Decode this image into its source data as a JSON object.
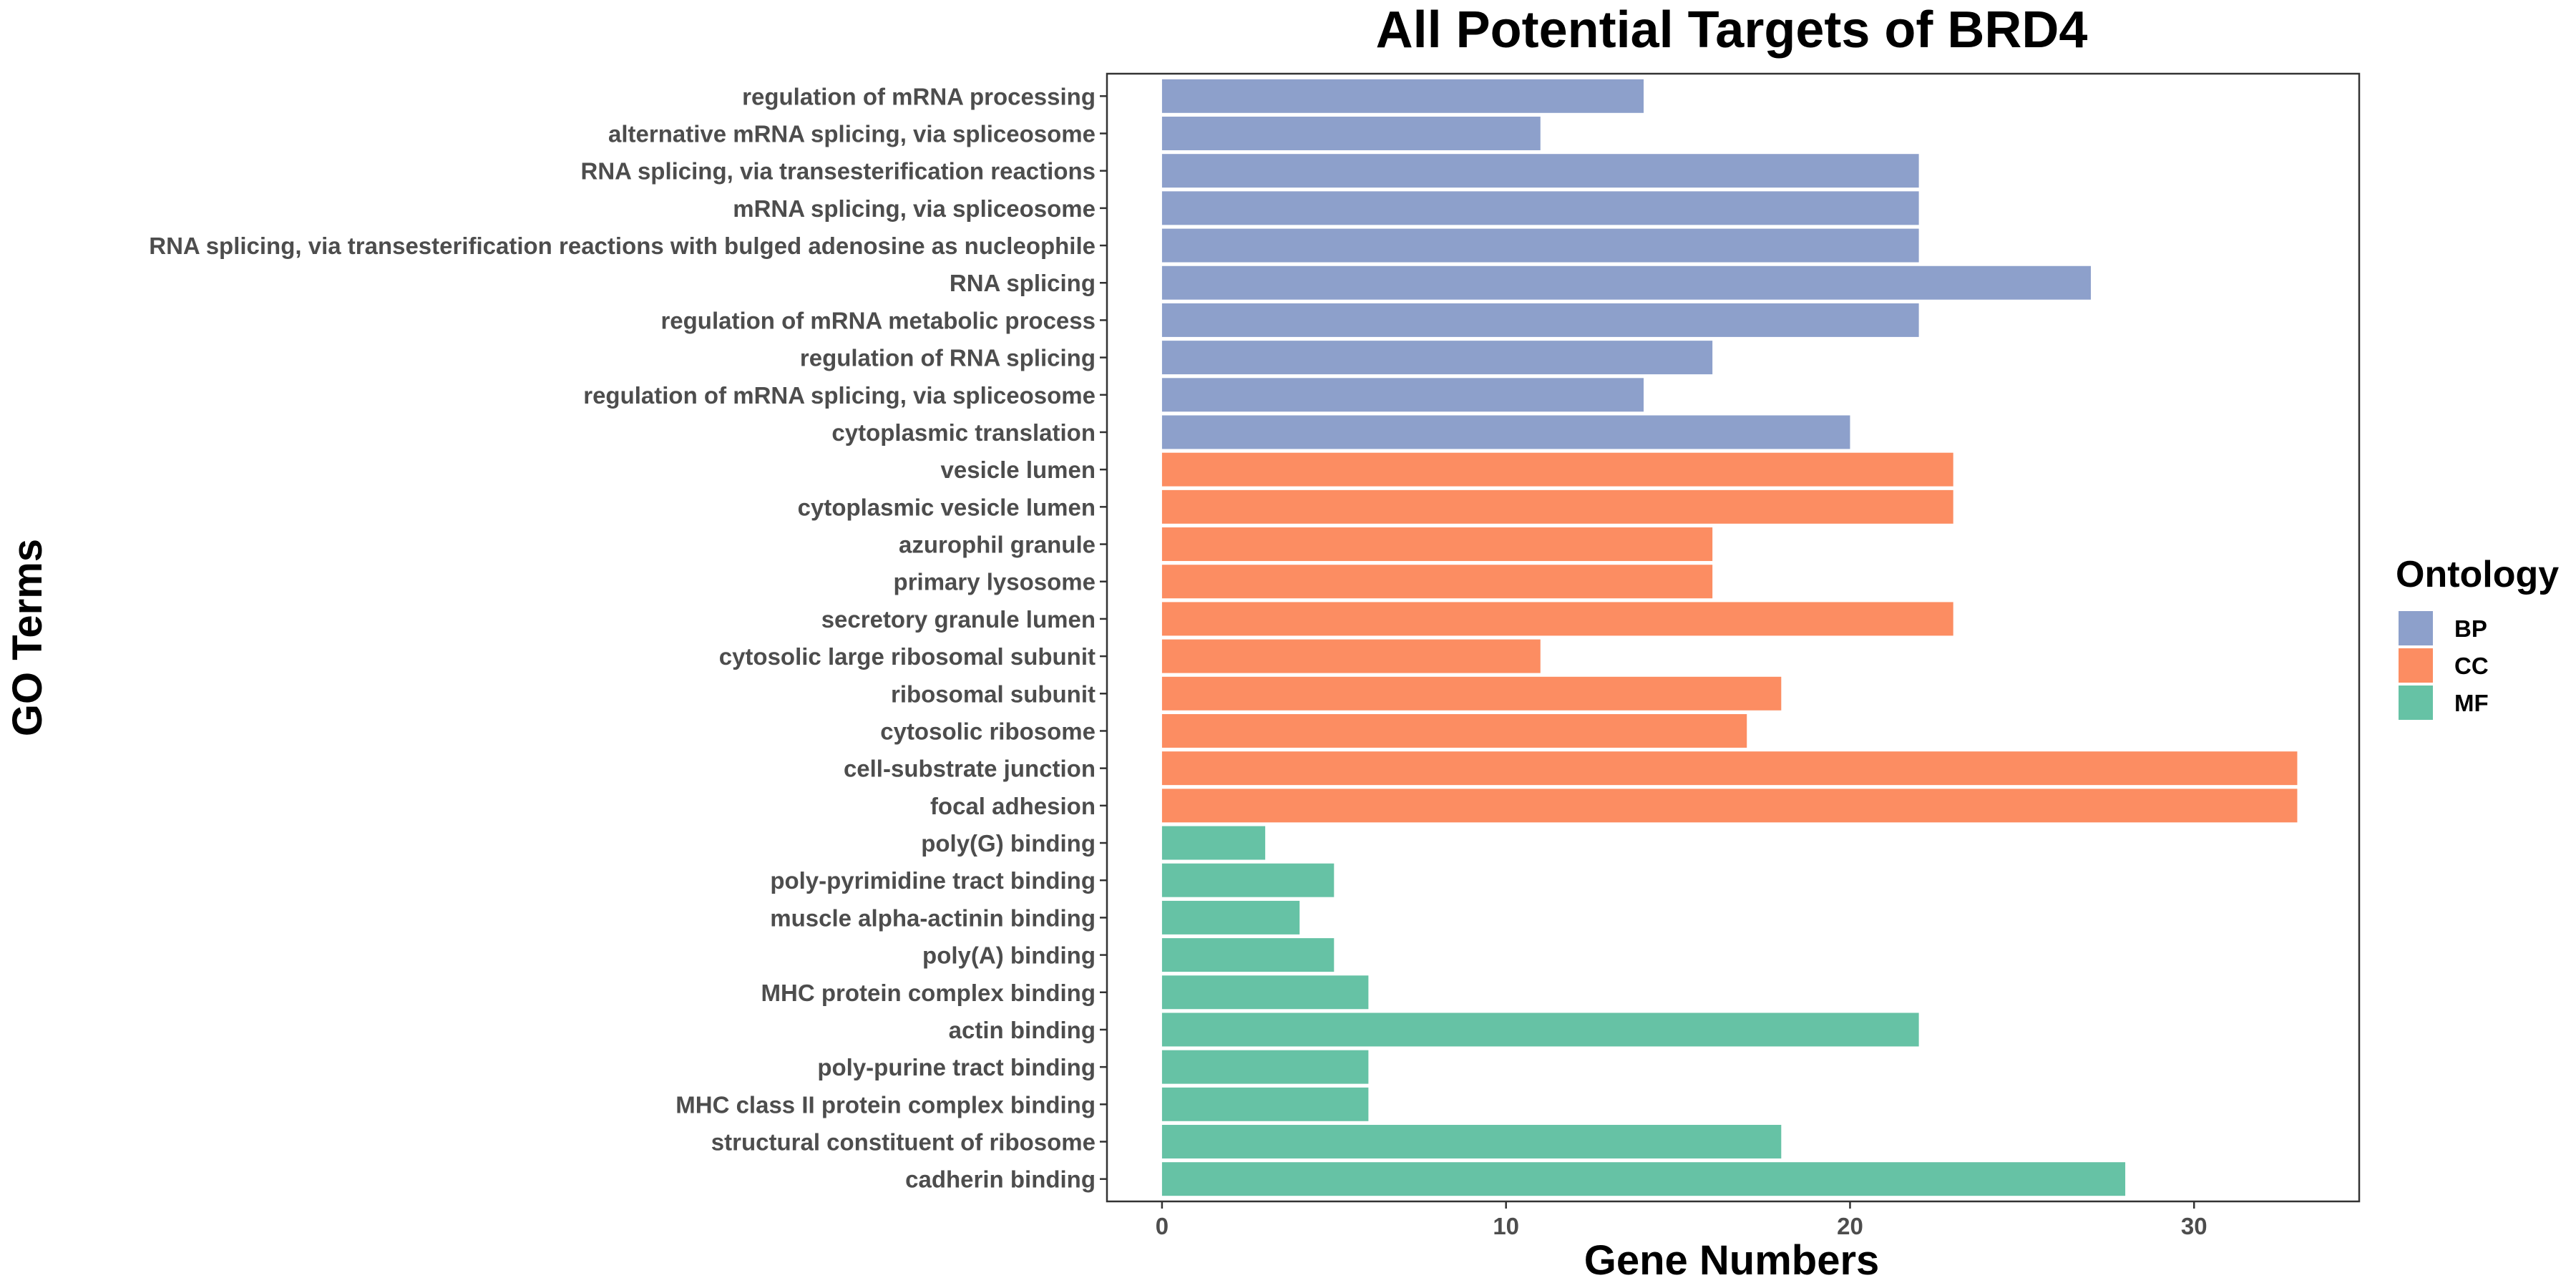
{
  "chart_data": {
    "type": "bar",
    "orientation": "horizontal",
    "title": "All Potential Targets of BRD4",
    "xlabel": "Gene Numbers",
    "ylabel": "GO Terms",
    "xlim": [
      -1.6,
      34.8
    ],
    "xticks": [
      0,
      10,
      20,
      30
    ],
    "grid": false,
    "legend": {
      "title": "Ontology",
      "placement": "right",
      "entries": [
        {
          "name": "BP",
          "color": "#8DA0CB"
        },
        {
          "name": "CC",
          "color": "#FC8D62"
        },
        {
          "name": "MF",
          "color": "#66C2A5"
        }
      ]
    },
    "bars": [
      {
        "term": "regulation of mRNA processing",
        "value": 14,
        "ontology": "BP"
      },
      {
        "term": "alternative mRNA splicing, via spliceosome",
        "value": 11,
        "ontology": "BP"
      },
      {
        "term": "RNA splicing, via transesterification reactions",
        "value": 22,
        "ontology": "BP"
      },
      {
        "term": "mRNA splicing, via spliceosome",
        "value": 22,
        "ontology": "BP"
      },
      {
        "term": "RNA splicing, via transesterification reactions with bulged adenosine as nucleophile",
        "value": 22,
        "ontology": "BP"
      },
      {
        "term": "RNA splicing",
        "value": 27,
        "ontology": "BP"
      },
      {
        "term": "regulation of mRNA metabolic process",
        "value": 22,
        "ontology": "BP"
      },
      {
        "term": "regulation of RNA splicing",
        "value": 16,
        "ontology": "BP"
      },
      {
        "term": "regulation of mRNA splicing, via spliceosome",
        "value": 14,
        "ontology": "BP"
      },
      {
        "term": "cytoplasmic translation",
        "value": 20,
        "ontology": "BP"
      },
      {
        "term": "vesicle lumen",
        "value": 23,
        "ontology": "CC"
      },
      {
        "term": "cytoplasmic vesicle lumen",
        "value": 23,
        "ontology": "CC"
      },
      {
        "term": "azurophil granule",
        "value": 16,
        "ontology": "CC"
      },
      {
        "term": "primary lysosome",
        "value": 16,
        "ontology": "CC"
      },
      {
        "term": "secretory granule lumen",
        "value": 23,
        "ontology": "CC"
      },
      {
        "term": "cytosolic large ribosomal subunit",
        "value": 11,
        "ontology": "CC"
      },
      {
        "term": "ribosomal subunit",
        "value": 18,
        "ontology": "CC"
      },
      {
        "term": "cytosolic ribosome",
        "value": 17,
        "ontology": "CC"
      },
      {
        "term": "cell-substrate junction",
        "value": 33,
        "ontology": "CC"
      },
      {
        "term": "focal adhesion",
        "value": 33,
        "ontology": "CC"
      },
      {
        "term": "poly(G) binding",
        "value": 3,
        "ontology": "MF"
      },
      {
        "term": "poly-pyrimidine tract binding",
        "value": 5,
        "ontology": "MF"
      },
      {
        "term": "muscle alpha-actinin binding",
        "value": 4,
        "ontology": "MF"
      },
      {
        "term": "poly(A) binding",
        "value": 5,
        "ontology": "MF"
      },
      {
        "term": "MHC protein complex binding",
        "value": 6,
        "ontology": "MF"
      },
      {
        "term": "actin binding",
        "value": 22,
        "ontology": "MF"
      },
      {
        "term": "poly-purine tract binding",
        "value": 6,
        "ontology": "MF"
      },
      {
        "term": "MHC class II protein complex binding",
        "value": 6,
        "ontology": "MF"
      },
      {
        "term": "structural constituent of ribosome",
        "value": 18,
        "ontology": "MF"
      },
      {
        "term": "cadherin binding",
        "value": 28,
        "ontology": "MF"
      }
    ]
  }
}
